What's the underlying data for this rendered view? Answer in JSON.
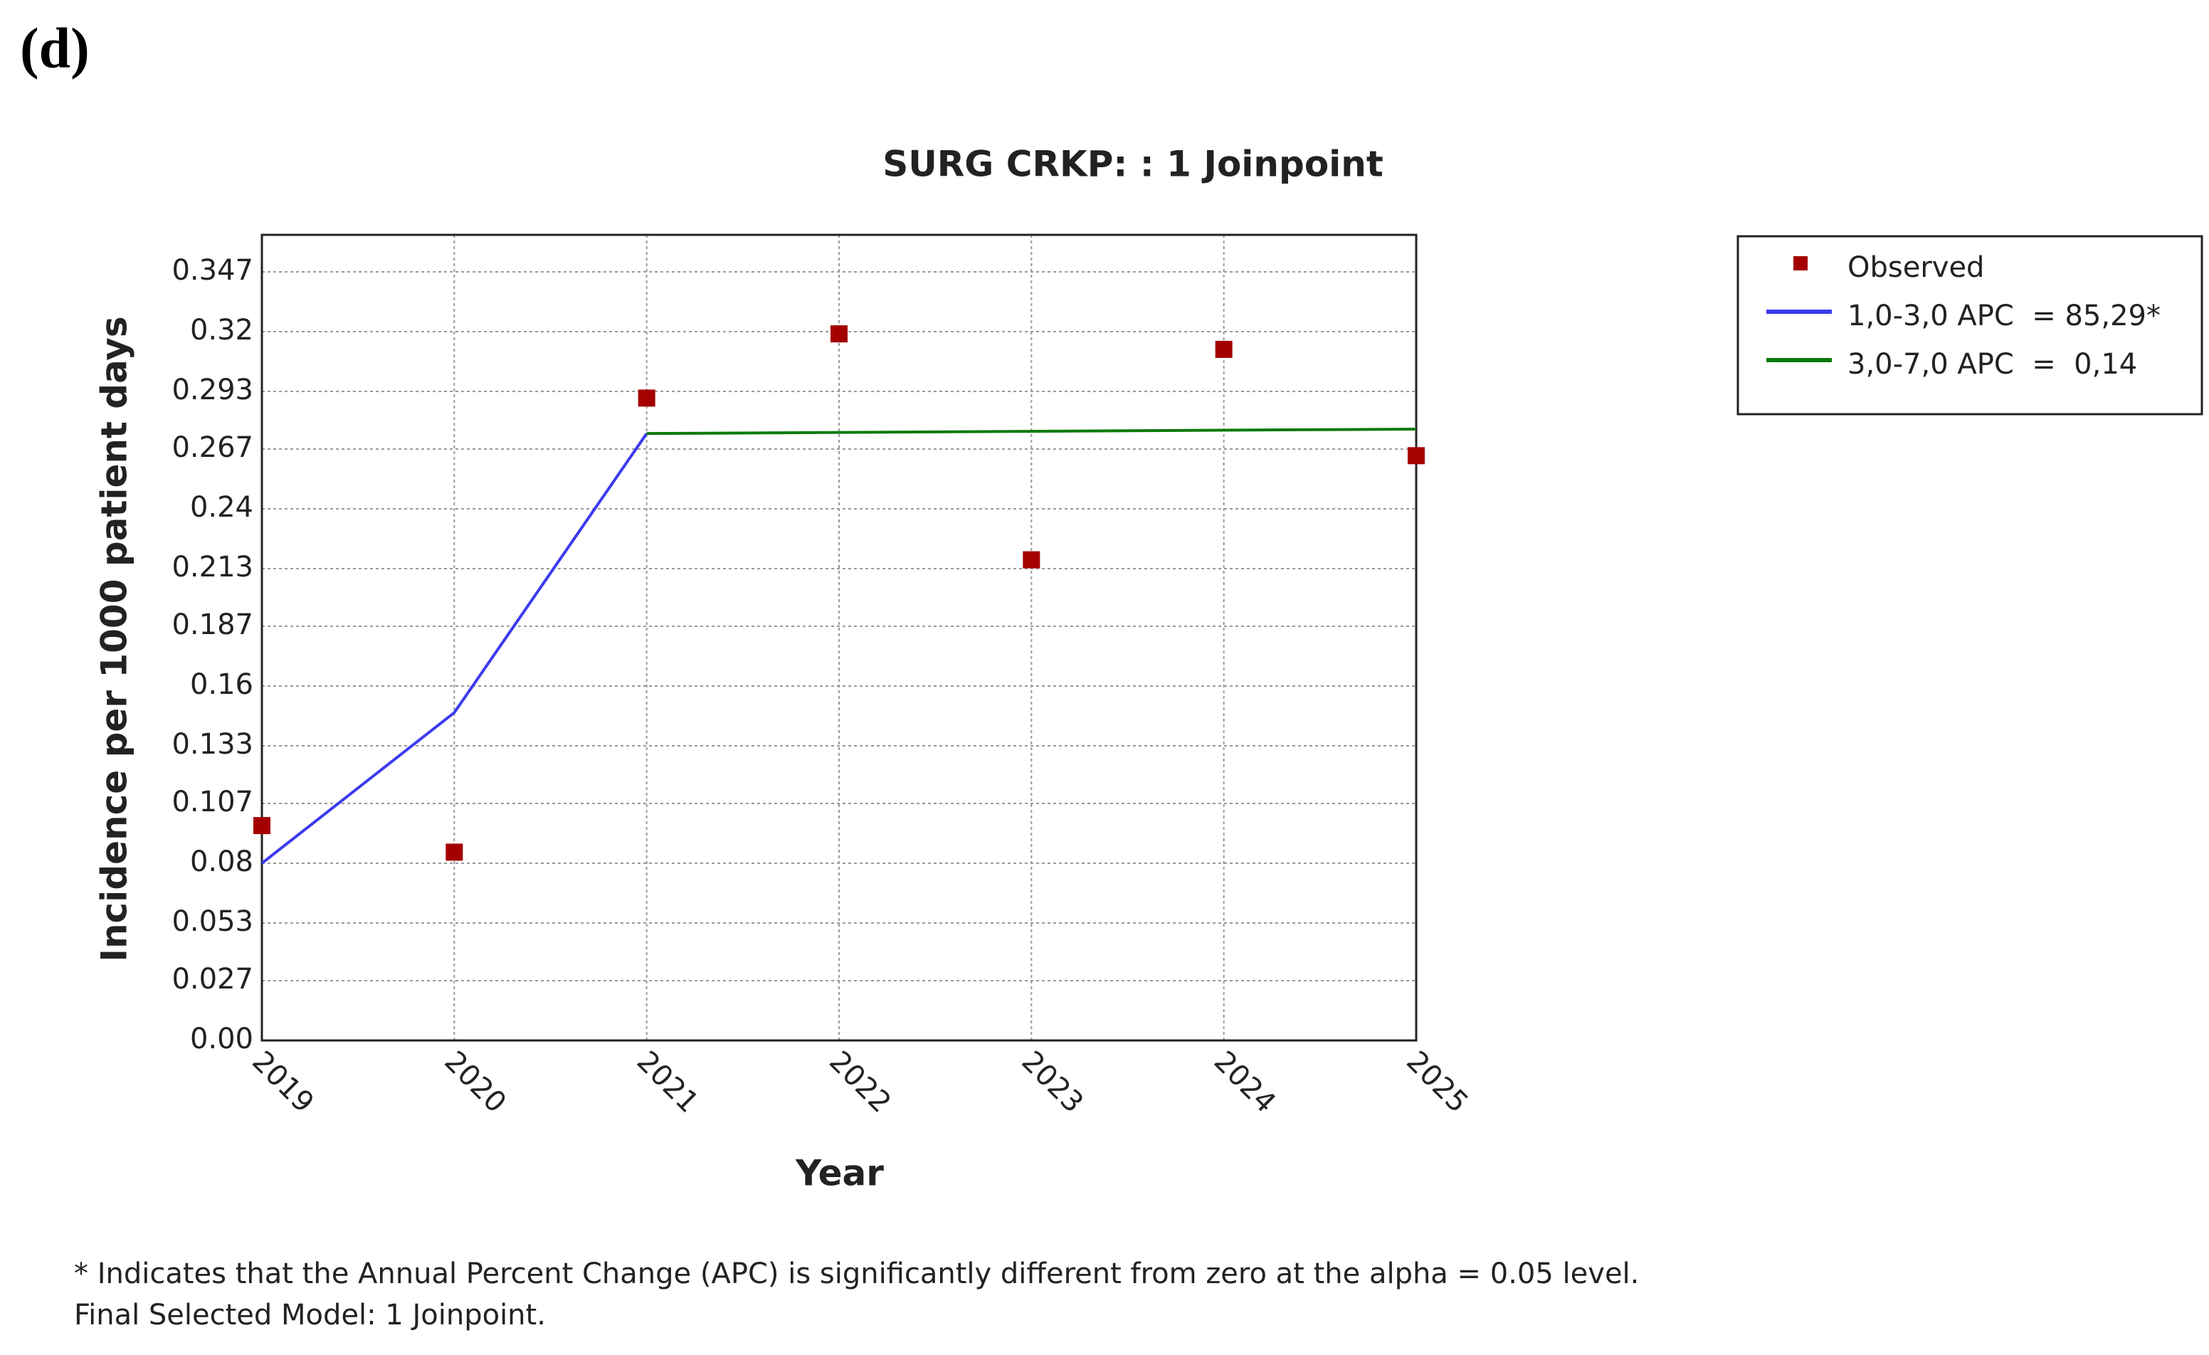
{
  "chart_data": {
    "type": "line",
    "panel_label": "(d)",
    "title": "SURG CRKP: : 1 Joinpoint",
    "x_label": "Year",
    "y_label": "Incidence per 1000 patient days",
    "xlim": [
      2019,
      2025
    ],
    "xticks": [
      2019,
      2020,
      2021,
      2022,
      2023,
      2024,
      2025
    ],
    "ylim": [
      0,
      0.3637
    ],
    "yticks": [
      {
        "value": 0,
        "label": "0.00"
      },
      0.027,
      0.053,
      0.08,
      0.107,
      0.133,
      0.16,
      0.187,
      0.213,
      0.24,
      0.267,
      0.293,
      0.32,
      0.347
    ],
    "grid": true,
    "legend_position": "right",
    "series": [
      {
        "name": "Observed",
        "mode": "markers",
        "color": "#a50000",
        "x": [
          2019,
          2020,
          2021,
          2022,
          2023,
          2024,
          2025
        ],
        "values": [
          0.097,
          0.085,
          0.29,
          0.319,
          0.217,
          0.312,
          0.264
        ]
      },
      {
        "name": "1,0-3,0 APC  = 85,29*",
        "mode": "lines",
        "color": "#3b3bf0",
        "x": [
          2019,
          2020,
          2021
        ],
        "values": [
          0.08,
          0.148,
          0.274
        ]
      },
      {
        "name": "3,0-7,0 APC  =  0,14",
        "mode": "lines",
        "color": "#0a7a0a",
        "x": [
          2021,
          2025
        ],
        "values": [
          0.274,
          0.276
        ]
      }
    ],
    "notes": [
      "* Indicates that the Annual Percent Change (APC) is significantly different from zero at the alpha = 0.05 level.",
      "Final Selected Model: 1 Joinpoint."
    ]
  }
}
